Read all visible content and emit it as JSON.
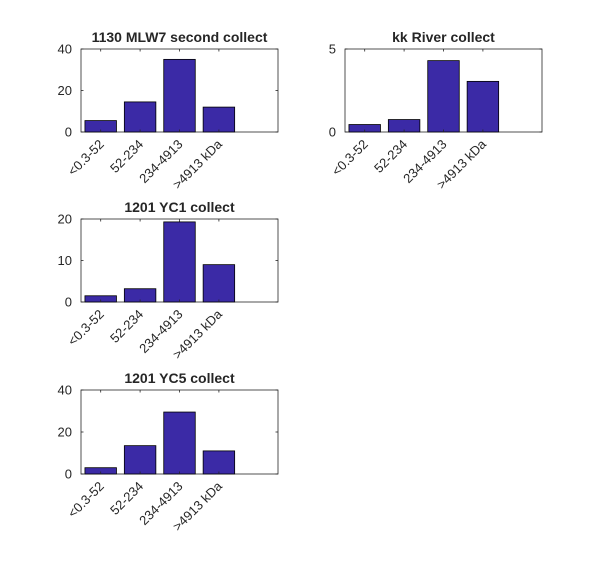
{
  "chart_data": [
    {
      "type": "bar",
      "title": "1130 MLW7 second collect",
      "categories": [
        "<0.3-52",
        "52-234",
        "234-4913",
        ">4913 kDa"
      ],
      "values": [
        5.5,
        14.5,
        35,
        12
      ],
      "ylim": [
        0,
        40
      ],
      "yticks": [
        0,
        20,
        40
      ],
      "bar_color": "#3b2aa6",
      "grid": false
    },
    {
      "type": "bar",
      "title": "kk River collect",
      "categories": [
        "<0.3-52",
        "52-234",
        "234-4913",
        ">4913 kDa"
      ],
      "values": [
        0.45,
        0.75,
        4.3,
        3.05
      ],
      "ylim": [
        0,
        5
      ],
      "yticks": [
        0,
        5
      ],
      "bar_color": "#3b2aa6",
      "grid": false
    },
    {
      "type": "bar",
      "title": "1201 YC1 collect",
      "categories": [
        "<0.3-52",
        "52-234",
        "234-4913",
        ">4913 kDa"
      ],
      "values": [
        1.5,
        3.2,
        19.3,
        9
      ],
      "ylim": [
        0,
        20
      ],
      "yticks": [
        0,
        10,
        20
      ],
      "bar_color": "#3b2aa6",
      "grid": false
    },
    {
      "type": "bar",
      "title": "1201 YC5 collect",
      "categories": [
        "<0.3-52",
        "52-234",
        "234-4913",
        ">4913 kDa"
      ],
      "values": [
        3,
        13.5,
        29.5,
        11
      ],
      "ylim": [
        0,
        40
      ],
      "yticks": [
        0,
        20,
        40
      ],
      "bar_color": "#3b2aa6",
      "grid": false
    }
  ]
}
